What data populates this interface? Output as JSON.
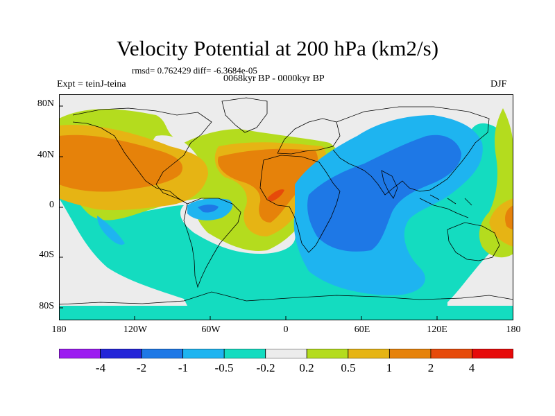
{
  "title": "Velocity Potential at 200 hPa (km2/s)",
  "stats": "rmsd= 0.762429 diff= -6.3684e-05",
  "period": "0068kyr BP - 0000kyr BP",
  "experiment": "Expt = teinJ-teina",
  "season": "DJF",
  "map": {
    "projection": "cylindrical-equidistant",
    "lon_range": [
      -180,
      180
    ],
    "lat_range": [
      -90,
      90
    ],
    "lat_ticks": [
      {
        "value": 80,
        "label": "80N"
      },
      {
        "value": 40,
        "label": "40N"
      },
      {
        "value": 0,
        "label": "0"
      },
      {
        "value": -40,
        "label": "40S"
      },
      {
        "value": -80,
        "label": "80S"
      }
    ],
    "lon_ticks": [
      {
        "value": -180,
        "label": "180"
      },
      {
        "value": -120,
        "label": "120W"
      },
      {
        "value": -60,
        "label": "60W"
      },
      {
        "value": 0,
        "label": "0"
      },
      {
        "value": 60,
        "label": "60E"
      },
      {
        "value": 120,
        "label": "120E"
      },
      {
        "value": 180,
        "label": "180"
      }
    ]
  },
  "colorbar": {
    "colors": [
      "#9c1cf0",
      "#2424d8",
      "#1e78e6",
      "#1eb4f0",
      "#14dcc0",
      "#ececec",
      "#b4dc1e",
      "#e6b414",
      "#e6820a",
      "#e64a0a",
      "#e60a0a"
    ],
    "labels": [
      "-4",
      "-2",
      "-1",
      "-0.5",
      "-0.2",
      "0.2",
      "0.5",
      "1",
      "2",
      "4"
    ]
  },
  "colors": {
    "land_outline": "#000000",
    "frame": "#000000"
  }
}
